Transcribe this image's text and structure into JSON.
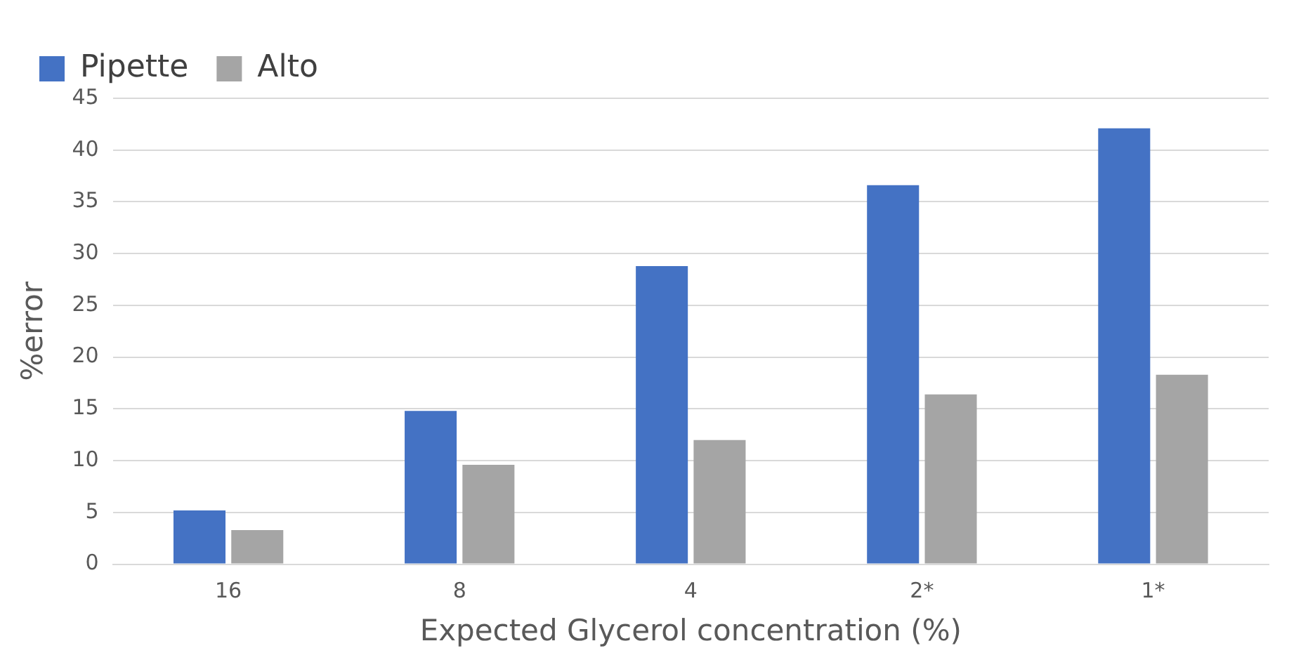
{
  "chart_data": {
    "type": "bar",
    "xlabel": "Expected Glycerol concentration (%)",
    "ylabel": "%error",
    "categories": [
      "16",
      "8",
      "4",
      "2*",
      "1*"
    ],
    "series": [
      {
        "name": "Pipette",
        "color": "#4472c4",
        "values": [
          5.2,
          14.8,
          28.8,
          36.6,
          42.1
        ]
      },
      {
        "name": "Alto",
        "color": "#a5a5a5",
        "values": [
          3.3,
          9.6,
          12,
          16.4,
          18.3
        ]
      }
    ],
    "ylim": [
      0,
      45
    ],
    "yticks": [
      0,
      5,
      10,
      15,
      20,
      25,
      30,
      35,
      40,
      45
    ],
    "grid": "y",
    "legend": "top left"
  }
}
